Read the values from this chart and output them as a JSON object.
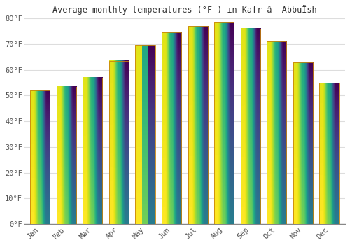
{
  "title": "Average monthly temperatures (°F ) in Kafr â  AbbūÏsh",
  "months": [
    "Jan",
    "Feb",
    "Mar",
    "Apr",
    "May",
    "Jun",
    "Jul",
    "Aug",
    "Sep",
    "Oct",
    "Nov",
    "Dec"
  ],
  "values": [
    52,
    53.5,
    57,
    63.5,
    69.5,
    74.5,
    77,
    78.5,
    76,
    71,
    63,
    55
  ],
  "bar_color_bottom": "#F5A623",
  "bar_color_top": "#FFD080",
  "bar_edge_color": "#C8830A",
  "ylim": [
    0,
    80
  ],
  "yticks": [
    0,
    10,
    20,
    30,
    40,
    50,
    60,
    70,
    80
  ],
  "ytick_labels": [
    "0°F",
    "10°F",
    "20°F",
    "30°F",
    "40°F",
    "50°F",
    "60°F",
    "70°F",
    "80°F"
  ],
  "background_color": "#ffffff",
  "grid_color": "#dddddd",
  "title_fontsize": 8.5,
  "tick_fontsize": 7.5
}
